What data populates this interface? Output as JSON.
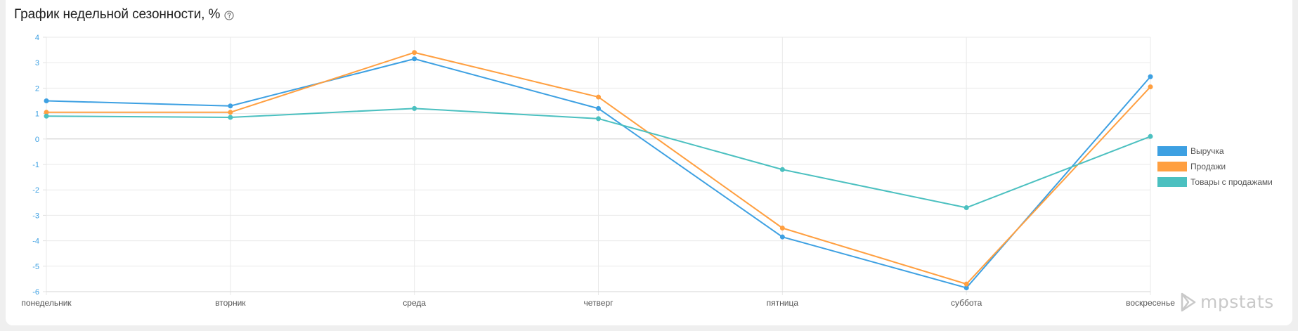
{
  "header": {
    "title": "График недельной сезонности, %"
  },
  "brand": {
    "name": "mpstats"
  },
  "colors": {
    "revenue": "#3da0e2",
    "sales": "#ff9f40",
    "items": "#4bc0c0",
    "tick": "#3da0e2",
    "grid": "#e6e6e6"
  },
  "chart_data": {
    "type": "line",
    "title": "График недельной сезонности, %",
    "categories": [
      "понедельник",
      "вторник",
      "среда",
      "четверг",
      "пятница",
      "суббота",
      "воскресенье"
    ],
    "ylim": [
      -6,
      4
    ],
    "yticks": [
      "4",
      "3",
      "2",
      "1",
      "0",
      "-1",
      "-2",
      "-3",
      "-4",
      "-5",
      "-6"
    ],
    "grid": true,
    "legend_position": "right",
    "series": [
      {
        "name": "Выручка",
        "color": "#3da0e2",
        "values": [
          1.5,
          1.3,
          3.15,
          1.2,
          -3.85,
          -5.85,
          2.45
        ]
      },
      {
        "name": "Продажи",
        "color": "#ff9f40",
        "values": [
          1.05,
          1.05,
          3.4,
          1.65,
          -3.5,
          -5.7,
          2.05
        ]
      },
      {
        "name": "Товары с продажами",
        "color": "#4bc0c0",
        "values": [
          0.9,
          0.85,
          1.2,
          0.8,
          -1.2,
          -2.7,
          0.1
        ]
      }
    ]
  }
}
